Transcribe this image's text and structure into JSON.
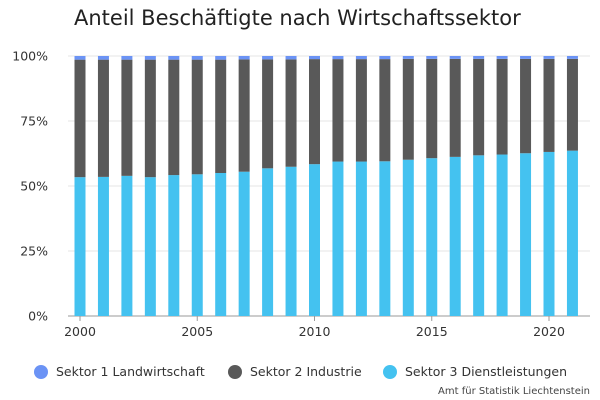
{
  "chart_data": {
    "type": "bar",
    "stacked": true,
    "title": "Anteil Beschäftigte nach Wirtschaftssektor",
    "xlabel": "",
    "ylabel": "",
    "ylim": [
      0,
      100
    ],
    "y_ticks": [
      "0%",
      "25%",
      "50%",
      "75%",
      "100%"
    ],
    "y_tick_values": [
      0,
      25,
      50,
      75,
      100
    ],
    "x_ticks": [
      "2000",
      "2005",
      "2010",
      "2015",
      "2020"
    ],
    "x_tick_values": [
      2000,
      2005,
      2010,
      2015,
      2020
    ],
    "categories": [
      2000,
      2001,
      2002,
      2003,
      2004,
      2005,
      2006,
      2007,
      2008,
      2009,
      2010,
      2011,
      2012,
      2013,
      2014,
      2015,
      2016,
      2017,
      2018,
      2019,
      2020,
      2021
    ],
    "series": [
      {
        "name": "Sektor 3 Dienstleistungen",
        "color": "#44c2f0",
        "values": [
          53.4,
          53.5,
          53.9,
          53.4,
          54.2,
          54.5,
          55.0,
          55.5,
          56.8,
          57.4,
          58.4,
          59.4,
          59.4,
          59.5,
          60.1,
          60.7,
          61.2,
          61.8,
          62.1,
          62.6,
          63.1,
          63.6
        ]
      },
      {
        "name": "Sektor 2 Industrie",
        "color": "#595959",
        "values": [
          45.2,
          45.1,
          44.7,
          45.2,
          44.4,
          44.1,
          43.6,
          43.2,
          41.9,
          41.3,
          40.4,
          39.4,
          39.4,
          39.3,
          38.8,
          38.2,
          37.7,
          37.1,
          36.8,
          36.3,
          35.8,
          35.3
        ]
      },
      {
        "name": "Sektor 1 Landwirtschaft",
        "color": "#6b93f5",
        "values": [
          1.4,
          1.4,
          1.4,
          1.4,
          1.4,
          1.4,
          1.4,
          1.3,
          1.3,
          1.3,
          1.2,
          1.2,
          1.2,
          1.2,
          1.1,
          1.1,
          1.1,
          1.1,
          1.1,
          1.1,
          1.1,
          1.1
        ]
      }
    ],
    "legend": [
      {
        "name": "Sektor 1 Landwirtschaft",
        "color": "#6b93f5"
      },
      {
        "name": "Sektor 2 Industrie",
        "color": "#595959"
      },
      {
        "name": "Sektor 3 Dienstleistungen",
        "color": "#44c2f0"
      }
    ],
    "legend_position": "bottom",
    "grid": true,
    "source": "Amt für Statistik Liechtenstein"
  }
}
